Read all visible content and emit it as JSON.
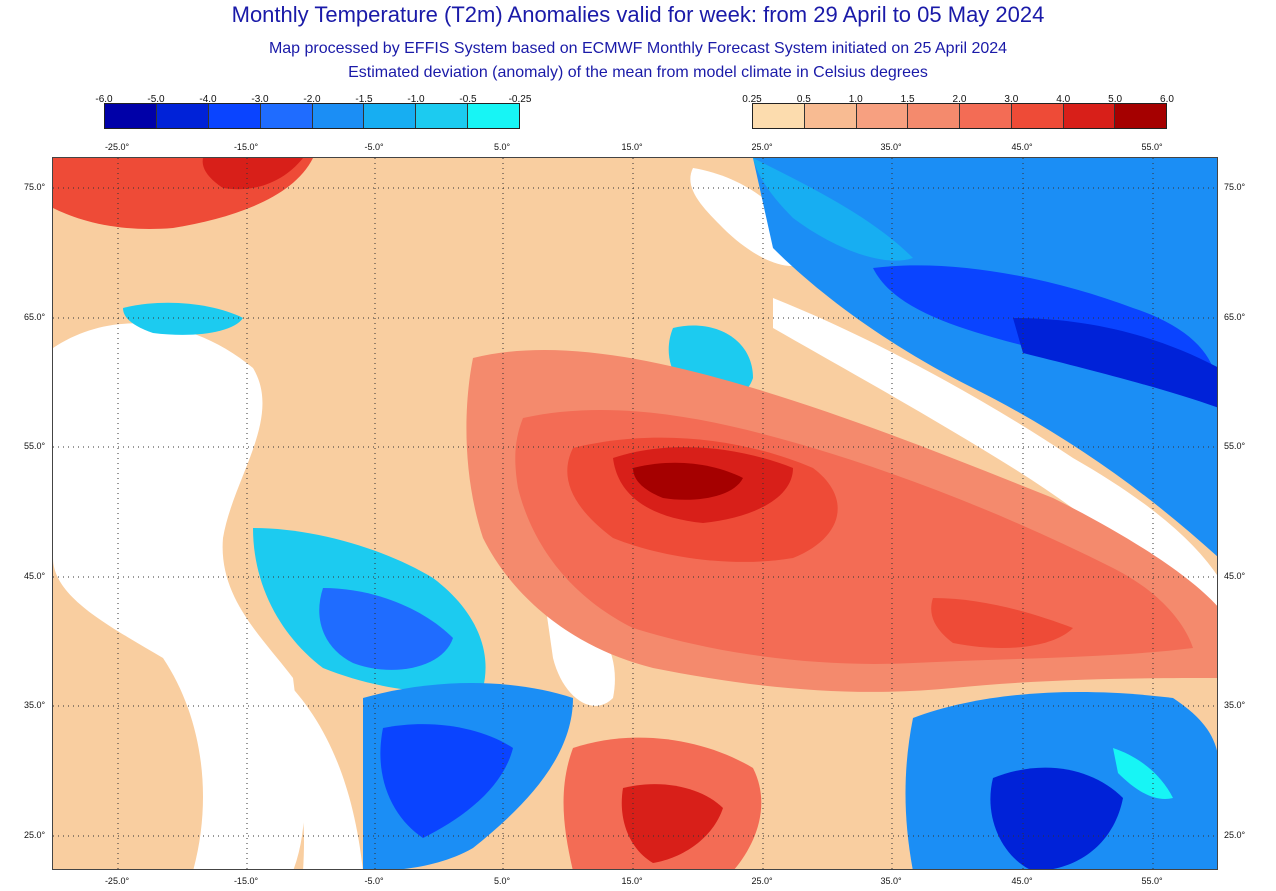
{
  "header": {
    "title": "Monthly Temperature (T2m) Anomalies valid for week: from 29 April to 05 May 2024",
    "subtitle1": "Map processed by EFFIS System based on ECMWF Monthly Forecast System initiated on 25 April 2024",
    "subtitle2": "Estimated deviation (anomaly) of the mean from model climate in Celsius degrees"
  },
  "legend": {
    "cold": {
      "labels": [
        "-6.0",
        "-5.0",
        "-4.0",
        "-3.0",
        "-2.0",
        "-1.5",
        "-1.0",
        "-0.5",
        "-0.25"
      ],
      "colors": [
        "#0000a8",
        "#0022d8",
        "#0a44ff",
        "#1f6cff",
        "#1b8ef5",
        "#17aef2",
        "#1ccbf0",
        "#17f5f5"
      ]
    },
    "warm": {
      "labels": [
        "0.25",
        "0.5",
        "1.0",
        "1.5",
        "2.0",
        "3.0",
        "4.0",
        "5.0",
        "6.0"
      ],
      "colors": [
        "#fcdcae",
        "#f8bb92",
        "#f7a080",
        "#f48a6d",
        "#f36c55",
        "#ee4b37",
        "#d81f19",
        "#a50000"
      ]
    }
  },
  "axes": {
    "longitudes": [
      "-25.0°",
      "-15.0°",
      "-5.0°",
      "5.0°",
      "15.0°",
      "25.0°",
      "35.0°",
      "45.0°",
      "55.0°"
    ],
    "latitudes": [
      "75.0°",
      "65.0°",
      "55.0°",
      "45.0°",
      "35.0°",
      "25.0°"
    ]
  },
  "colors": {
    "title": "#1a1aa8",
    "frame": "#444444",
    "grid": "#333333",
    "no_anomaly": "#ffffff"
  }
}
